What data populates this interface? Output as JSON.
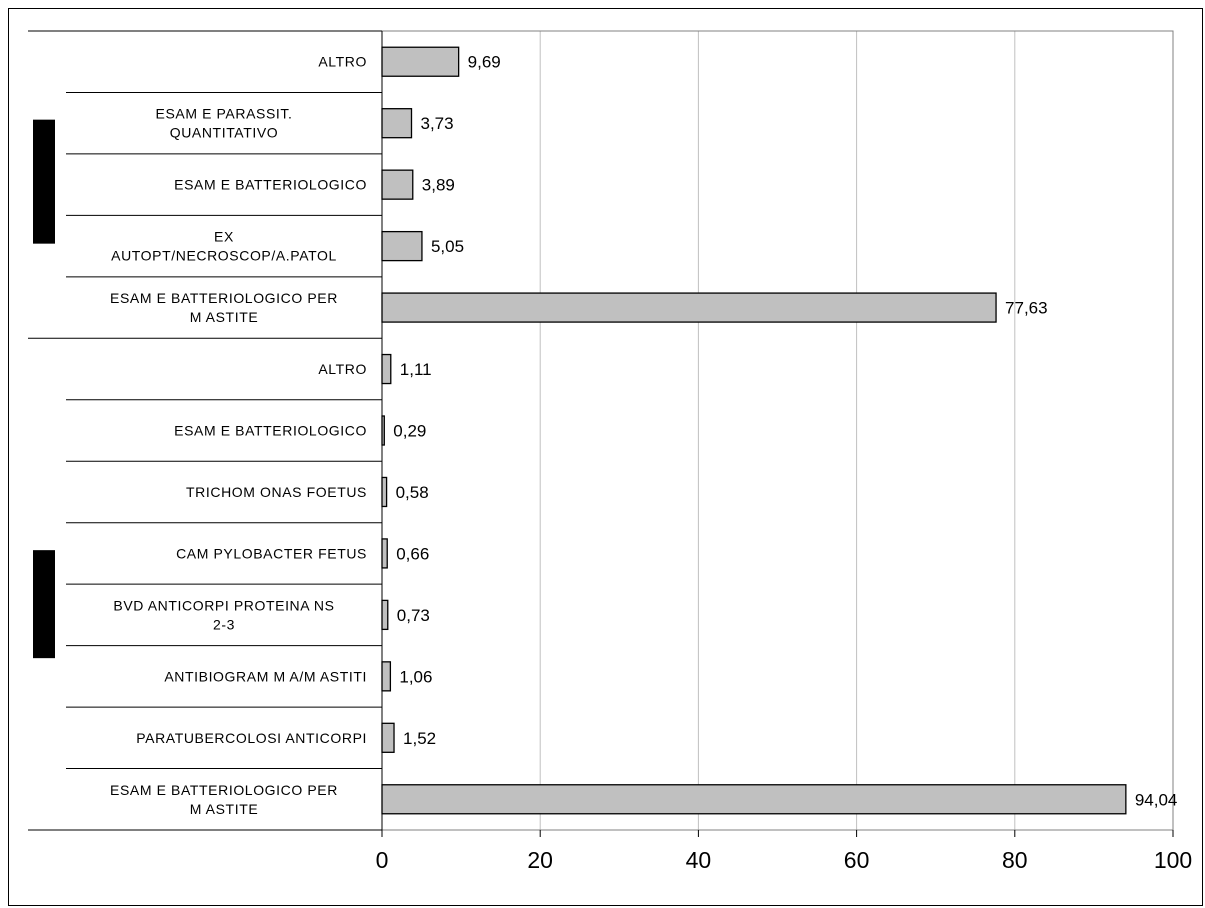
{
  "chart_data": {
    "type": "bar",
    "orientation": "horizontal",
    "xlim": [
      0,
      100
    ],
    "x_ticks": [
      "0",
      "20",
      "40",
      "60",
      "80",
      "100"
    ],
    "grid": true,
    "colors": {
      "bar": "#c0c0c0",
      "bar_stroke": "#000000",
      "grid": "#c0c0c0",
      "group_marker": "#000000"
    },
    "groups": [
      {
        "label": "",
        "categories": [
          [
            "ALTRO"
          ],
          [
            "ESAM E PARASSIT.",
            "QUANTITATIVO"
          ],
          [
            "ESAM E BATTERIOLOGICO"
          ],
          [
            "EX",
            "AUTOPT/NECROSCOP/A.PATOL"
          ],
          [
            "ESAM E BATTERIOLOGICO PER",
            "M ASTITE"
          ]
        ],
        "values": [
          9.69,
          3.73,
          3.89,
          5.05,
          77.63
        ],
        "value_labels": [
          "9,69",
          "3,73",
          "3,89",
          "5,05",
          "77,63"
        ]
      },
      {
        "label": "",
        "categories": [
          [
            "ALTRO"
          ],
          [
            "ESAM E BATTERIOLOGICO"
          ],
          [
            "TRICHOM ONAS FOETUS"
          ],
          [
            "CAM PYLOBACTER FETUS"
          ],
          [
            "BVD ANTICORPI PROTEINA NS",
            "2-3"
          ],
          [
            "ANTIBIOGRAM M A/M ASTITI"
          ],
          [
            "PARATUBERCOLOSI ANTICORPI"
          ],
          [
            "ESAM E BATTERIOLOGICO PER",
            "M ASTITE"
          ]
        ],
        "values": [
          1.11,
          0.29,
          0.58,
          0.66,
          0.73,
          1.06,
          1.52,
          94.04
        ],
        "value_labels": [
          "1,11",
          "0,29",
          "0,58",
          "0,66",
          "0,73",
          "1,06",
          "1,52",
          "94,04"
        ]
      }
    ]
  }
}
